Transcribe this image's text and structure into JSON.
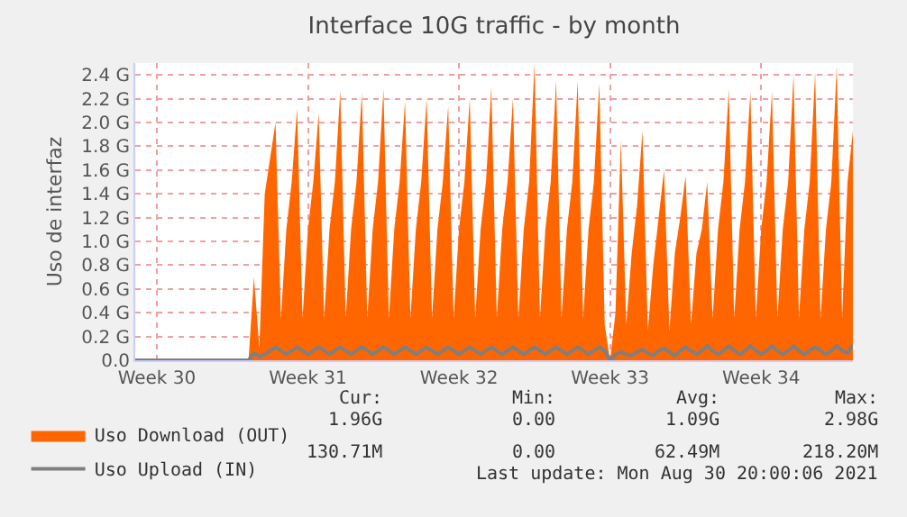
{
  "chart_data": {
    "type": "area",
    "title": "Interface 10G traffic - by month",
    "ylabel": "Uso de interfaz",
    "categories": [
      null,
      null,
      null,
      null,
      "Week 30",
      null,
      null,
      null,
      null,
      null,
      null,
      null,
      null,
      null,
      null,
      null,
      null,
      null,
      null,
      null,
      null,
      null,
      null,
      null,
      null,
      null,
      null,
      null,
      null,
      null,
      null,
      null,
      "Week 31",
      null,
      null,
      null,
      null,
      null,
      null,
      null,
      null,
      null,
      null,
      null,
      null,
      null,
      null,
      null,
      null,
      null,
      null,
      null,
      null,
      null,
      null,
      null,
      null,
      null,
      null,
      null,
      "Week 32",
      null,
      null,
      null,
      null,
      null,
      null,
      null,
      null,
      null,
      null,
      null,
      null,
      null,
      null,
      null,
      null,
      null,
      null,
      null,
      null,
      null,
      null,
      null,
      null,
      null,
      null,
      null,
      "Week 33",
      null,
      null,
      null,
      null,
      null,
      null,
      null,
      null,
      null,
      null,
      null,
      null,
      null,
      null,
      null,
      null,
      null,
      null,
      null,
      null,
      null,
      null,
      null,
      null,
      null,
      null,
      null,
      "Week 34",
      null,
      null,
      null,
      null,
      null,
      null,
      null,
      null,
      null,
      null,
      null,
      null,
      null,
      null,
      null,
      null,
      null
    ],
    "ylim": [
      0,
      2.5
    ],
    "yticks": [
      {
        "value": 0,
        "label": "0.0"
      },
      {
        "value": 0.2,
        "label": "0.2 G"
      },
      {
        "value": 0.4,
        "label": "0.4 G"
      },
      {
        "value": 0.6,
        "label": "0.6 G"
      },
      {
        "value": 0.8,
        "label": "0.8 G"
      },
      {
        "value": 1.0,
        "label": "1.0 G"
      },
      {
        "value": 1.2,
        "label": "1.2 G"
      },
      {
        "value": 1.4,
        "label": "1.4 G"
      },
      {
        "value": 1.6,
        "label": "1.6 G"
      },
      {
        "value": 1.8,
        "label": "1.8 G"
      },
      {
        "value": 2.0,
        "label": "2.0 G"
      },
      {
        "value": 2.2,
        "label": "2.2 G"
      },
      {
        "value": 2.4,
        "label": "2.4 G"
      }
    ],
    "grid": true,
    "legend": "bottom",
    "series": [
      {
        "name": "Uso Download (OUT)",
        "color": "#ff6600",
        "values": [
          0,
          0,
          0,
          0,
          0,
          0,
          0,
          0,
          0,
          0,
          0,
          0,
          0,
          0,
          0,
          0,
          0,
          0,
          0,
          0,
          0,
          0,
          0.7,
          0.1,
          1.4,
          1.7,
          2.0,
          0.35,
          1.1,
          1.5,
          2.12,
          0.35,
          1.1,
          1.5,
          2.08,
          0.35,
          1.1,
          1.5,
          2.27,
          0.35,
          1.1,
          1.5,
          2.25,
          0.35,
          1.1,
          1.5,
          2.28,
          0.35,
          1.1,
          1.5,
          2.18,
          0.35,
          1.1,
          1.5,
          2.2,
          0.35,
          1.1,
          1.5,
          2.14,
          0.35,
          1.1,
          1.5,
          2.2,
          0.35,
          1.1,
          1.5,
          2.3,
          0.35,
          1.1,
          1.5,
          2.2,
          0.35,
          1.1,
          1.5,
          2.5,
          0.35,
          1.1,
          1.5,
          2.35,
          0.35,
          1.1,
          1.5,
          2.35,
          0.35,
          1.1,
          1.5,
          2.33,
          0.3,
          0,
          0.4,
          1.85,
          0.3,
          0.9,
          1.3,
          1.93,
          0.25,
          0.8,
          1.2,
          1.6,
          0.25,
          0.9,
          1.2,
          1.55,
          0.3,
          0.9,
          1.1,
          1.5,
          0.35,
          1.1,
          1.5,
          2.28,
          0.35,
          1.1,
          1.5,
          2.26,
          0.35,
          1.1,
          1.5,
          2.26,
          0.35,
          1.1,
          1.5,
          2.4,
          0.35,
          1.1,
          1.5,
          2.42,
          0.35,
          1.1,
          1.5,
          2.47,
          0.35,
          1.5,
          1.93
        ]
      },
      {
        "name": "Uso Upload (IN)",
        "type": "line",
        "color": "#7f7f7f",
        "values": [
          0,
          0,
          0,
          0,
          0,
          0,
          0,
          0,
          0,
          0,
          0,
          0,
          0,
          0,
          0,
          0,
          0,
          0,
          0,
          0,
          0,
          0,
          0.06,
          0.03,
          0.05,
          0.08,
          0.11,
          0.08,
          0.05,
          0.08,
          0.11,
          0.08,
          0.05,
          0.08,
          0.11,
          0.08,
          0.05,
          0.08,
          0.11,
          0.08,
          0.05,
          0.08,
          0.11,
          0.08,
          0.05,
          0.08,
          0.11,
          0.08,
          0.05,
          0.08,
          0.11,
          0.08,
          0.05,
          0.08,
          0.11,
          0.08,
          0.05,
          0.08,
          0.11,
          0.08,
          0.05,
          0.08,
          0.11,
          0.08,
          0.05,
          0.08,
          0.11,
          0.08,
          0.05,
          0.08,
          0.11,
          0.08,
          0.05,
          0.08,
          0.11,
          0.08,
          0.05,
          0.08,
          0.11,
          0.08,
          0.05,
          0.08,
          0.11,
          0.08,
          0.05,
          0.08,
          0.11,
          0.08,
          0,
          0.05,
          0.07,
          0.05,
          0.04,
          0.07,
          0.09,
          0.06,
          0.04,
          0.08,
          0.1,
          0.07,
          0.04,
          0.08,
          0.11,
          0.08,
          0.05,
          0.08,
          0.12,
          0.08,
          0.05,
          0.08,
          0.12,
          0.08,
          0.05,
          0.08,
          0.12,
          0.08,
          0.05,
          0.08,
          0.12,
          0.08,
          0.05,
          0.08,
          0.12,
          0.08,
          0.05,
          0.08,
          0.11,
          0.08,
          0.05,
          0.08,
          0.12,
          0.08,
          0.06,
          0.13
        ]
      }
    ],
    "annotations": [
      "Cur:",
      "Min:",
      "Avg:",
      "Max:",
      "1.96G",
      "0.00",
      "1.09G",
      "2.98G",
      "130.71M",
      "0.00",
      "62.49M",
      "218.20M",
      "Last update: Mon Aug 30 20:00:06 2021"
    ]
  }
}
